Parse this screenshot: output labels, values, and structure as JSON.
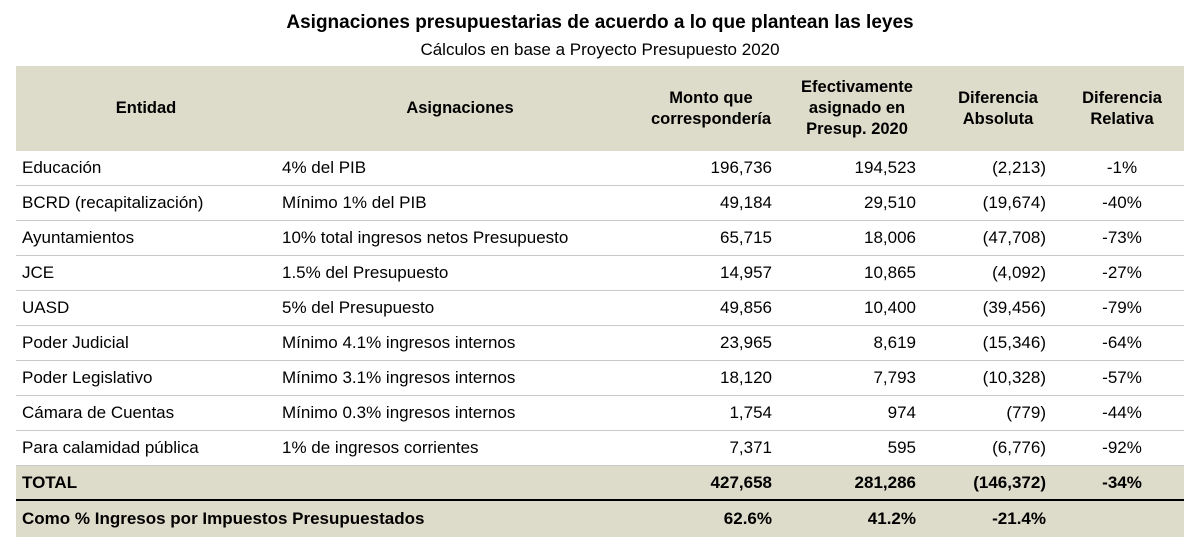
{
  "title": "Asignaciones presupuestarias de acuerdo a lo que plantean las leyes",
  "subtitle": "Cálculos en base a Proyecto Presupuesto 2020",
  "headers": {
    "entidad": "Entidad",
    "asignaciones": "Asignaciones",
    "monto": [
      "Monto que",
      "correspondería"
    ],
    "efectivo": [
      "Efectivamente",
      "asignado en",
      "Presup. 2020"
    ],
    "dif_abs": [
      "Diferencia",
      "Absoluta"
    ],
    "dif_rel": [
      "Diferencia",
      "Relativa"
    ]
  },
  "rows": [
    {
      "entidad": "Educación",
      "asignacion": "4% del PIB",
      "monto": "196,736",
      "efectivo": "194,523",
      "dif_abs": "(2,213)",
      "dif_rel": "-1%"
    },
    {
      "entidad": "BCRD (recapitalización)",
      "asignacion": "Mínimo 1% del PIB",
      "monto": "49,184",
      "efectivo": "29,510",
      "dif_abs": "(19,674)",
      "dif_rel": "-40%"
    },
    {
      "entidad": "Ayuntamientos",
      "asignacion": "10% total ingresos netos Presupuesto",
      "monto": "65,715",
      "efectivo": "18,006",
      "dif_abs": "(47,708)",
      "dif_rel": "-73%"
    },
    {
      "entidad": "JCE",
      "asignacion": "1.5% del Presupuesto",
      "monto": "14,957",
      "efectivo": "10,865",
      "dif_abs": "(4,092)",
      "dif_rel": "-27%"
    },
    {
      "entidad": "UASD",
      "asignacion": "5% del Presupuesto",
      "monto": "49,856",
      "efectivo": "10,400",
      "dif_abs": "(39,456)",
      "dif_rel": "-79%"
    },
    {
      "entidad": "Poder Judicial",
      "asignacion": "Mínimo 4.1% ingresos internos",
      "monto": "23,965",
      "efectivo": "8,619",
      "dif_abs": "(15,346)",
      "dif_rel": "-64%"
    },
    {
      "entidad": "Poder Legislativo",
      "asignacion": "Mínimo 3.1% ingresos internos",
      "monto": "18,120",
      "efectivo": "7,793",
      "dif_abs": "(10,328)",
      "dif_rel": "-57%"
    },
    {
      "entidad": "Cámara de Cuentas",
      "asignacion": "Mínimo 0.3% ingresos internos",
      "monto": "1,754",
      "efectivo": "974",
      "dif_abs": "(779)",
      "dif_rel": "-44%"
    },
    {
      "entidad": "Para calamidad pública",
      "asignacion": "1% de ingresos corrientes",
      "monto": "7,371",
      "efectivo": "595",
      "dif_abs": "(6,776)",
      "dif_rel": "-92%"
    }
  ],
  "total": {
    "label": "TOTAL",
    "monto": "427,658",
    "efectivo": "281,286",
    "dif_abs": "(146,372)",
    "dif_rel": "-34%"
  },
  "pct_row": {
    "label": "Como % Ingresos por Impuestos Presupuestados",
    "monto": "62.6%",
    "efectivo": "41.2%",
    "dif_abs": "-21.4%"
  },
  "colors": {
    "header_bg": "#dddbc9",
    "row_border": "#c9c9c9",
    "total_border": "#000000"
  },
  "chart_data": {
    "type": "table",
    "title": "Asignaciones presupuestarias de acuerdo a lo que plantean las leyes",
    "subtitle": "Cálculos en base a Proyecto Presupuesto 2020",
    "columns": [
      "Entidad",
      "Asignaciones",
      "Monto que correspondería",
      "Efectivamente asignado en Presup. 2020",
      "Diferencia Absoluta",
      "Diferencia Relativa"
    ],
    "categories": [
      "Educación",
      "BCRD (recapitalización)",
      "Ayuntamientos",
      "JCE",
      "UASD",
      "Poder Judicial",
      "Poder Legislativo",
      "Cámara de Cuentas",
      "Para calamidad pública",
      "TOTAL"
    ],
    "series": [
      {
        "name": "Monto que correspondería",
        "values": [
          196736,
          49184,
          65715,
          14957,
          49856,
          23965,
          18120,
          1754,
          7371,
          427658
        ]
      },
      {
        "name": "Efectivamente asignado en Presup. 2020",
        "values": [
          194523,
          29510,
          18006,
          10865,
          10400,
          8619,
          7793,
          974,
          595,
          281286
        ]
      },
      {
        "name": "Diferencia Absoluta",
        "values": [
          -2213,
          -19674,
          -47708,
          -4092,
          -39456,
          -15346,
          -10328,
          -779,
          -6776,
          -146372
        ]
      },
      {
        "name": "Diferencia Relativa",
        "values": [
          -1,
          -40,
          -73,
          -27,
          -79,
          -64,
          -57,
          -44,
          -92,
          -34
        ]
      }
    ]
  }
}
